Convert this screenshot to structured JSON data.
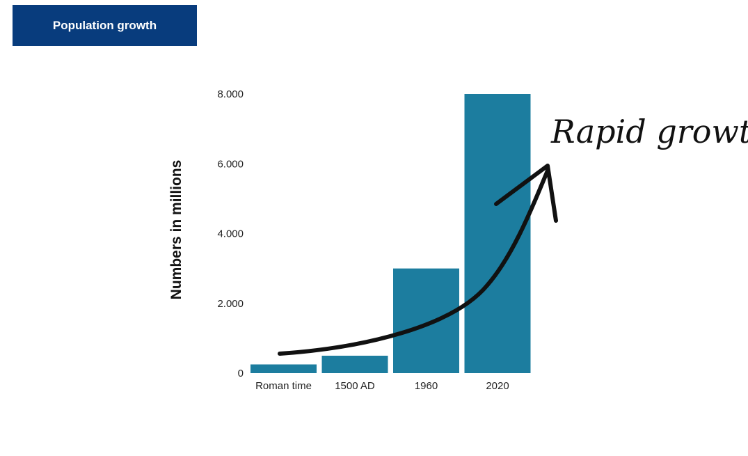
{
  "header": {
    "title": "Population growth"
  },
  "colors": {
    "banner": "#083c7d",
    "bar": "#1c7d9f",
    "arrow": "#111111"
  },
  "chart_data": {
    "type": "bar",
    "categories": [
      "Roman time",
      "1500 AD",
      "1960",
      "2020"
    ],
    "values": [
      250,
      500,
      3000,
      8000
    ],
    "ylabel": "Numbers in millions",
    "xlabel": "",
    "ylim": [
      0,
      8000
    ],
    "yticks": [
      0,
      2000,
      4000,
      6000,
      8000
    ],
    "ytick_labels": [
      "0",
      "2.000",
      "4.000",
      "6.000",
      "8.000"
    ],
    "grid": false,
    "annotation": "Rapid growth"
  }
}
